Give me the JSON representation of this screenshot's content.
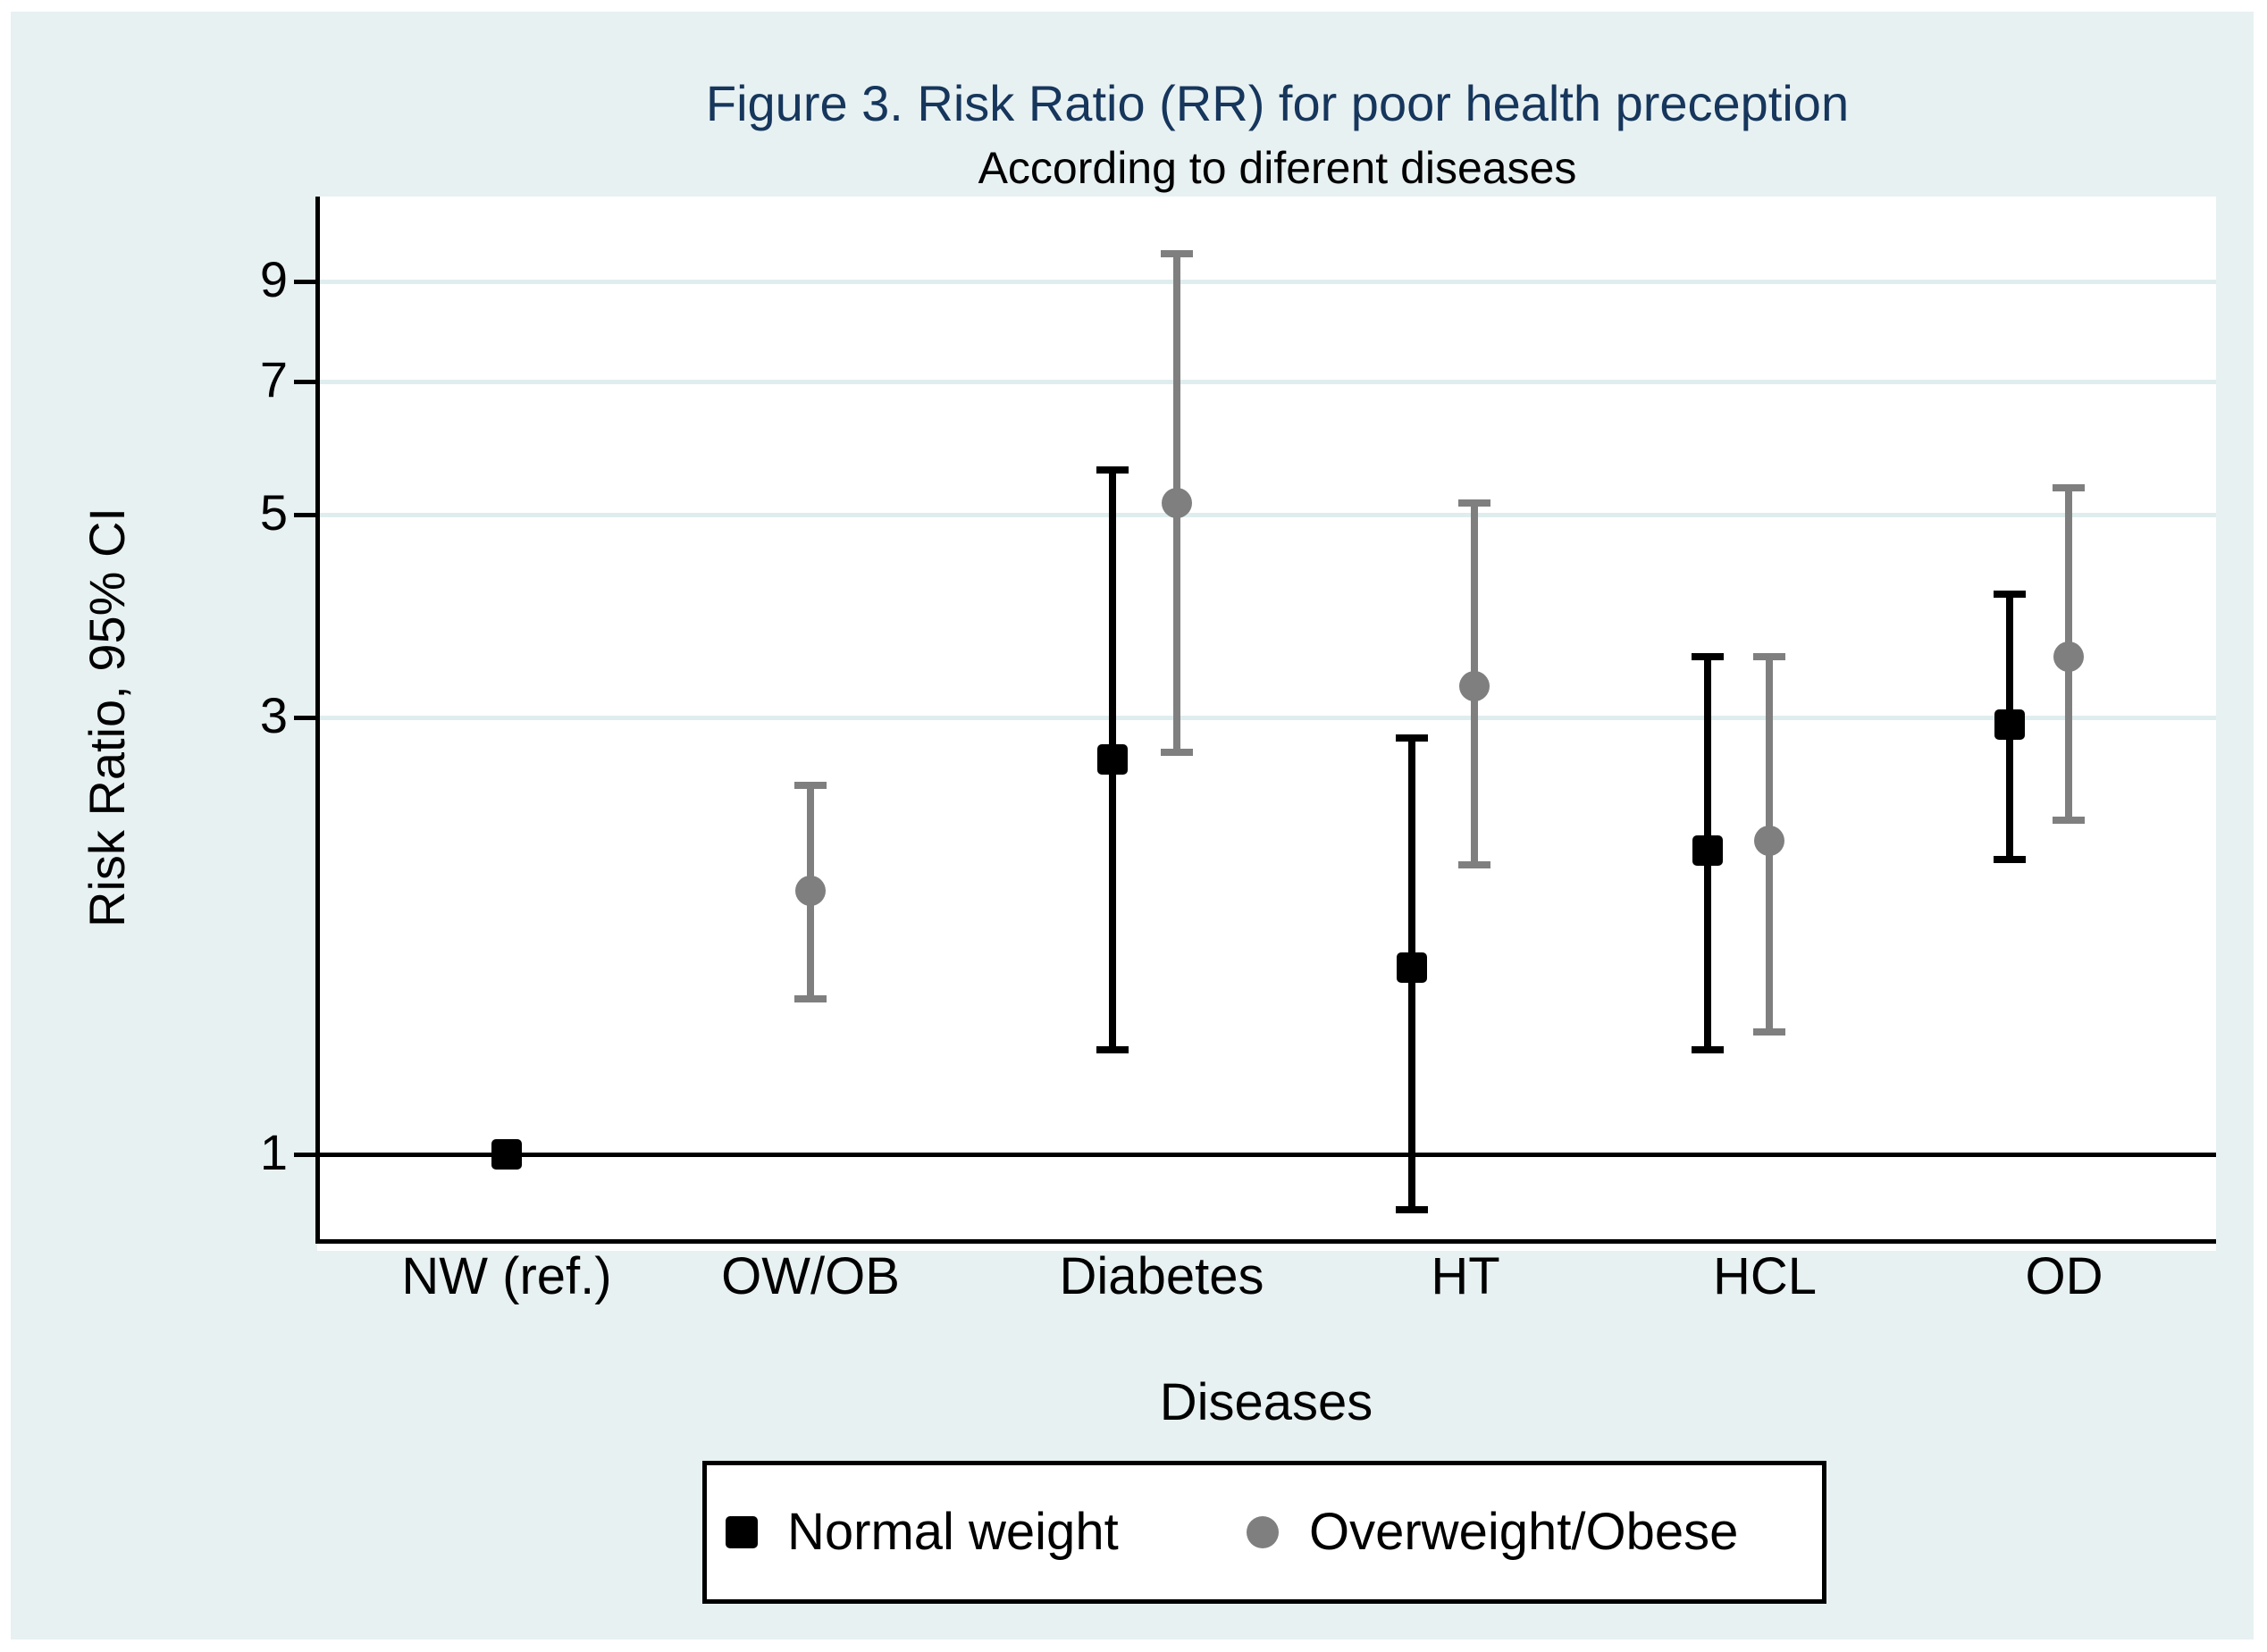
{
  "figure": {
    "title": "Figure 3. Risk Ratio (RR) for poor health preception",
    "subtitle": "According to diferent diseases",
    "colors": {
      "title_text": "#16365C",
      "canvas_background": "#E8F1F2",
      "plot_background": "#FFFFFF",
      "gridline": "#DFEDEE",
      "axis_and_reference_line": "#000000",
      "series_normal_weight": "#000000",
      "series_overweight_obese": "#7F7F7F"
    }
  },
  "chart_data": {
    "type": "scatter",
    "variant": "point-estimate-with-95ci-error-bars",
    "title": "Figure 3. Risk Ratio (RR) for poor health preception",
    "subtitle": "According to diferent diseases",
    "xlabel": "Diseases",
    "ylabel": "Risk Ratio, 95% CI",
    "yscale": "log",
    "yticks": [
      1,
      3,
      5,
      7,
      9
    ],
    "ylim": [
      0.81,
      11.1
    ],
    "grid": "horizontal light lines at yticks 3,5,7,9",
    "reference_line_y": 1,
    "categories": [
      "NW (ref.)",
      "OW/OB",
      "Diabetes",
      "HT",
      "HCL",
      "OD"
    ],
    "legend": {
      "position": "bottom-center",
      "entries": [
        {
          "label": "Normal weight",
          "marker": "square",
          "color": "#000000"
        },
        {
          "label": "Overweight/Obese",
          "marker": "circle",
          "color": "#7F7F7F"
        }
      ]
    },
    "series": [
      {
        "name": "Normal weight",
        "marker": "square",
        "color": "#000000",
        "points": [
          {
            "category": "NW (ref.)",
            "rr": 1.0,
            "ci_low": null,
            "ci_high": null
          },
          {
            "category": "Diabetes",
            "rr": 2.7,
            "ci_low": 1.3,
            "ci_high": 5.6
          },
          {
            "category": "HT",
            "rr": 1.6,
            "ci_low": 0.87,
            "ci_high": 2.85
          },
          {
            "category": "HCL",
            "rr": 2.15,
            "ci_low": 1.3,
            "ci_high": 3.5
          },
          {
            "category": "OD",
            "rr": 2.95,
            "ci_low": 2.1,
            "ci_high": 4.1
          }
        ]
      },
      {
        "name": "Overweight/Obese",
        "marker": "circle",
        "color": "#7F7F7F",
        "points": [
          {
            "category": "OW/OB",
            "rr": 1.94,
            "ci_low": 1.48,
            "ci_high": 2.53
          },
          {
            "category": "Diabetes",
            "rr": 5.15,
            "ci_low": 2.75,
            "ci_high": 9.65
          },
          {
            "category": "HT",
            "rr": 3.25,
            "ci_low": 2.07,
            "ci_high": 5.15
          },
          {
            "category": "HCL",
            "rr": 2.2,
            "ci_low": 1.36,
            "ci_high": 3.5
          },
          {
            "category": "OD",
            "rr": 3.5,
            "ci_low": 2.32,
            "ci_high": 5.35
          }
        ]
      }
    ]
  }
}
